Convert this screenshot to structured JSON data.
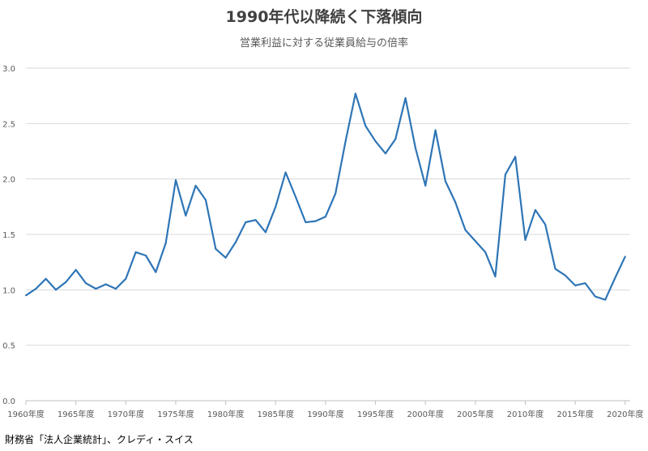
{
  "chart_data": {
    "type": "line",
    "title": "1990年代以降続く下落傾向",
    "subtitle": "営業利益に対する従業員給与の倍率",
    "xlabel": "",
    "ylabel": "",
    "ylim": [
      0,
      3.0
    ],
    "yticks": [
      "0.0",
      "0.5",
      "1.0",
      "1.5",
      "2.0",
      "2.5",
      "3.0"
    ],
    "xticks": [
      "1960年度",
      "1965年度",
      "1970年度",
      "1975年度",
      "1980年度",
      "1985年度",
      "1990年度",
      "1995年度",
      "2000年度",
      "2005年度",
      "2010年度",
      "2015年度",
      "2020年度"
    ],
    "grid": true,
    "line_color": "#2e75b6",
    "x": [
      1960,
      1961,
      1962,
      1963,
      1964,
      1965,
      1966,
      1967,
      1968,
      1969,
      1970,
      1971,
      1972,
      1973,
      1974,
      1975,
      1976,
      1977,
      1978,
      1979,
      1980,
      1981,
      1982,
      1983,
      1984,
      1985,
      1986,
      1987,
      1988,
      1989,
      1990,
      1991,
      1992,
      1993,
      1994,
      1995,
      1996,
      1997,
      1998,
      1999,
      2000,
      2001,
      2002,
      2003,
      2004,
      2005,
      2006,
      2007,
      2008,
      2009,
      2010,
      2011,
      2012,
      2013,
      2014,
      2015,
      2016,
      2017,
      2018,
      2019,
      2020
    ],
    "values": [
      0.95,
      1.01,
      1.1,
      1.0,
      1.07,
      1.18,
      1.06,
      1.01,
      1.05,
      1.01,
      1.1,
      1.34,
      1.31,
      1.16,
      1.42,
      1.99,
      1.67,
      1.94,
      1.81,
      1.37,
      1.29,
      1.43,
      1.61,
      1.63,
      1.52,
      1.75,
      2.06,
      1.84,
      1.61,
      1.62,
      1.66,
      1.87,
      2.34,
      2.77,
      2.48,
      2.34,
      2.23,
      2.36,
      2.73,
      2.28,
      1.94,
      2.44,
      1.98,
      1.79,
      1.54,
      1.44,
      1.34,
      1.12,
      2.04,
      2.2,
      1.45,
      1.72,
      1.59,
      1.19,
      1.13,
      1.04,
      1.06,
      0.94,
      0.91,
      1.11,
      1.3
    ],
    "source": "財務省「法人企業統計」、クレディ・スイス"
  }
}
